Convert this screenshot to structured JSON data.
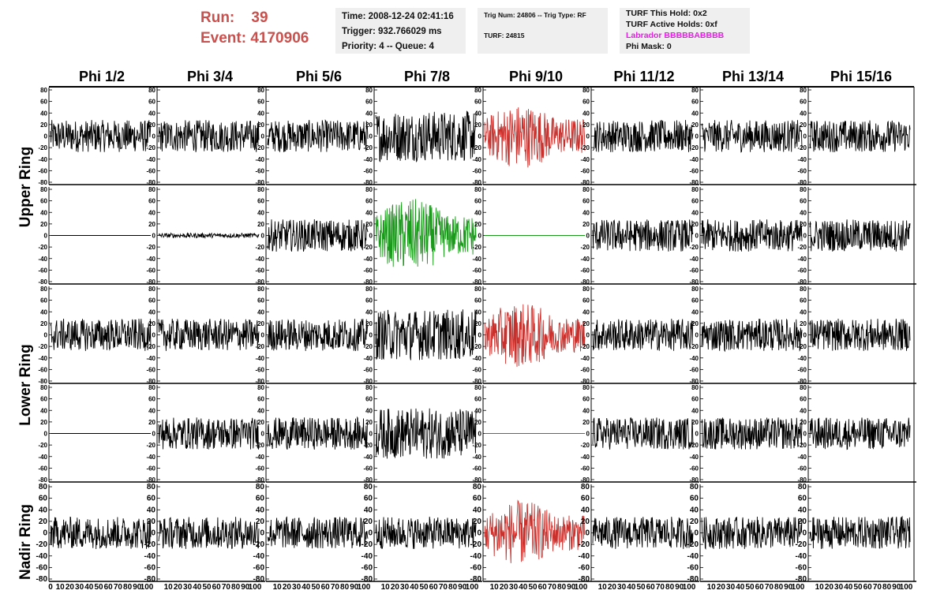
{
  "header": {
    "run_label": "Run:",
    "run_value": "39",
    "event_label": "Event:",
    "event_value": "4170906"
  },
  "info_time": {
    "time": "Time: 2008-12-24 02:41:16",
    "trigger": "Trigger: 932.766029 ms",
    "priority": "Priority: 4 -- Queue: 4"
  },
  "info_trig": {
    "trig_num": "Trig Num: 24806 -- Trig Type: RF",
    "turf": "TURF: 24815"
  },
  "info_turf": {
    "this_hold": "TURF This Hold: 0x2",
    "active_holds": "TURF Active Holds: 0xf",
    "labrador": "Labrador BBBBBABBBB",
    "phi_mask": "Phi Mask: 0"
  },
  "columns": [
    "Phi 1/2",
    "Phi 3/4",
    "Phi 5/6",
    "Phi 7/8",
    "Phi 9/10",
    "Phi 11/12",
    "Phi 13/14",
    "Phi 15/16"
  ],
  "ring_labels": {
    "upper": "Upper Ring",
    "lower": "Lower Ring",
    "nadir": "Nadir Ring"
  },
  "axes": {
    "y_ticks": [
      "80",
      "60",
      "40",
      "20",
      "0",
      "-20",
      "-40",
      "-60",
      "-80"
    ],
    "x_ticks": [
      "0",
      "10",
      "20",
      "30",
      "40",
      "50",
      "60",
      "70",
      "80",
      "90",
      "100"
    ]
  },
  "colors": {
    "trace_default": "#000000",
    "trace_red": "#c9302c",
    "trace_green": "#1a9a1a",
    "header_red": "#c9504c",
    "labrador_magenta": "#e51ee5",
    "info_bg": "#efefef"
  },
  "panels": [
    [
      "noise-mid",
      "noise-mid",
      "noise-mid",
      "noise-big",
      "signal-red",
      "noise-mid",
      "noise-mid",
      "noise-mid"
    ],
    [
      "flat",
      "noise-tiny",
      "noise-mid",
      "signal-green",
      "flat-green",
      "noise-mid",
      "noise-mid",
      "noise-mid"
    ],
    [
      "noise-mid",
      "noise-mid",
      "noise-mid",
      "noise-big",
      "signal-red",
      "noise-mid",
      "noise-mid",
      "noise-mid"
    ],
    [
      "flat",
      "noise-mid",
      "noise-mid",
      "noise-big",
      "flat-green",
      "noise-mid",
      "noise-mid",
      "noise-mid"
    ],
    [
      "noise-mid",
      "noise-mid",
      "noise-mid",
      "noise-mid",
      "signal-red",
      "noise-mid",
      "noise-mid",
      "noise-mid"
    ]
  ]
}
